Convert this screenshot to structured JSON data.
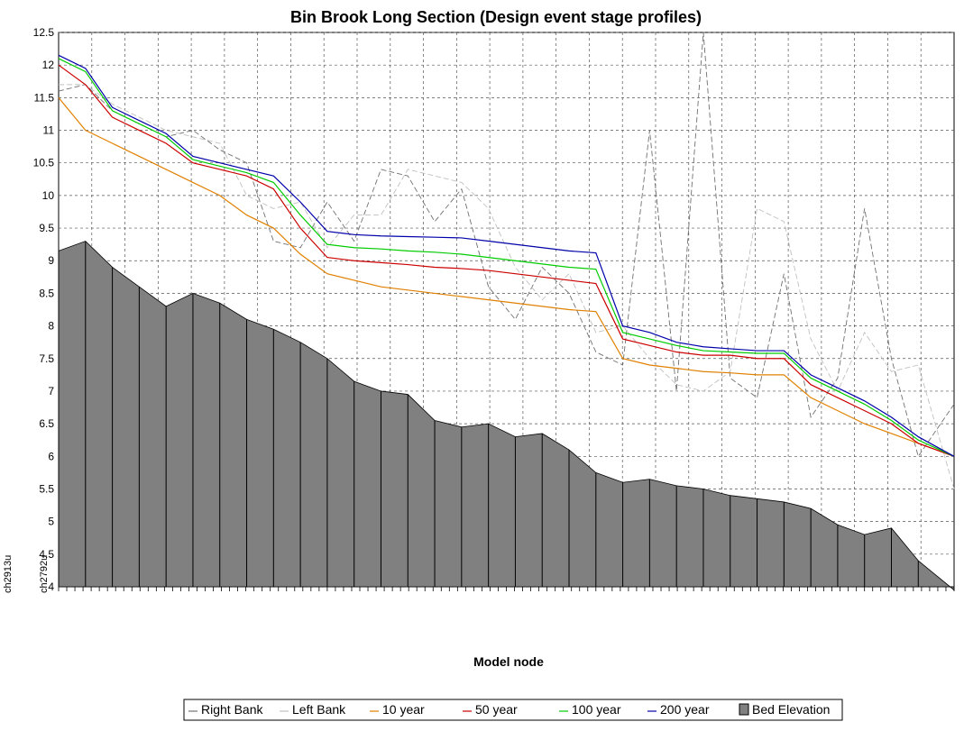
{
  "chart_data": {
    "type": "line",
    "title": "Bin Brook Long Section (Design event stage profiles)",
    "xlabel": "Model node",
    "ylabel": "",
    "ylim": [
      4,
      12.5
    ],
    "yticks": [
      4,
      4.5,
      5,
      5.5,
      6,
      6.5,
      7,
      7.5,
      8,
      8.5,
      9,
      9.5,
      10,
      10.5,
      11,
      11.5,
      12,
      12.5
    ],
    "grid": true,
    "legend_position": "bottom",
    "side_labels": [
      "ch2913u",
      "ch2792u"
    ],
    "colors": {
      "right_bank": "#707070",
      "left_bank": "#c0c0c0",
      "y10": "#e08000",
      "y50": "#cc0000",
      "y100": "#00cc00",
      "y200": "#0000aa",
      "bed": "#808080"
    },
    "x": [
      0,
      3,
      6,
      9,
      12,
      15,
      18,
      21,
      24,
      27,
      30,
      33,
      36,
      39,
      42,
      45,
      48,
      51,
      54,
      57,
      60,
      63,
      66,
      69,
      72,
      75,
      78,
      81,
      84,
      87,
      90,
      93,
      96,
      100
    ],
    "series": [
      {
        "name": "Right Bank",
        "values": [
          11.6,
          11.7,
          11.3,
          11.1,
          10.9,
          11.0,
          10.7,
          10.5,
          9.3,
          9.2,
          9.9,
          9.3,
          10.4,
          10.3,
          9.6,
          10.1,
          8.6,
          8.1,
          8.9,
          8.5,
          7.6,
          7.4,
          11.0,
          7.0,
          12.5,
          7.2,
          6.9,
          8.8,
          6.6,
          7.2,
          9.8,
          7.5,
          6.0,
          6.8
        ]
      },
      {
        "name": "Left Bank",
        "values": [
          11.7,
          11.7,
          11.4,
          11.2,
          11.0,
          10.9,
          10.8,
          10.0,
          9.8,
          9.9,
          9.2,
          9.7,
          9.7,
          10.4,
          10.3,
          10.2,
          9.8,
          8.9,
          8.4,
          8.8,
          7.9,
          8.0,
          7.5,
          7.1,
          7.0,
          7.3,
          9.8,
          9.6,
          7.8,
          7.0,
          7.9,
          7.3,
          7.4,
          5.5
        ]
      },
      {
        "name": "10 year",
        "values": [
          11.5,
          11.0,
          10.8,
          10.6,
          10.4,
          10.2,
          10.0,
          9.7,
          9.5,
          9.1,
          8.8,
          8.7,
          8.6,
          8.55,
          8.5,
          8.45,
          8.4,
          8.35,
          8.3,
          8.25,
          8.22,
          7.5,
          7.4,
          7.35,
          7.3,
          7.28,
          7.25,
          7.25,
          6.9,
          6.7,
          6.5,
          6.35,
          6.2,
          6.0
        ]
      },
      {
        "name": "50 year",
        "values": [
          12.0,
          11.7,
          11.2,
          11.0,
          10.8,
          10.5,
          10.4,
          10.3,
          10.1,
          9.5,
          9.05,
          9.0,
          8.97,
          8.94,
          8.9,
          8.88,
          8.85,
          8.8,
          8.75,
          8.7,
          8.65,
          7.8,
          7.7,
          7.6,
          7.55,
          7.55,
          7.5,
          7.5,
          7.1,
          6.9,
          6.7,
          6.5,
          6.2,
          6.0
        ]
      },
      {
        "name": "100 year",
        "values": [
          12.1,
          11.9,
          11.3,
          11.1,
          10.9,
          10.55,
          10.45,
          10.35,
          10.2,
          9.7,
          9.25,
          9.2,
          9.18,
          9.15,
          9.13,
          9.1,
          9.05,
          9.0,
          8.95,
          8.9,
          8.87,
          7.9,
          7.8,
          7.7,
          7.62,
          7.6,
          7.58,
          7.58,
          7.2,
          7.0,
          6.8,
          6.55,
          6.25,
          6.0
        ]
      },
      {
        "name": "200 year",
        "values": [
          12.15,
          11.95,
          11.35,
          11.15,
          10.95,
          10.6,
          10.5,
          10.4,
          10.3,
          9.9,
          9.45,
          9.4,
          9.38,
          9.37,
          9.36,
          9.35,
          9.3,
          9.25,
          9.2,
          9.15,
          9.12,
          8.0,
          7.9,
          7.75,
          7.68,
          7.65,
          7.62,
          7.62,
          7.25,
          7.05,
          6.85,
          6.6,
          6.3,
          6.0
        ]
      },
      {
        "name": "Bed Elevation",
        "values": [
          9.15,
          9.3,
          8.9,
          8.6,
          8.3,
          8.5,
          8.35,
          8.1,
          7.95,
          7.75,
          7.5,
          7.15,
          7.0,
          6.95,
          6.55,
          6.45,
          6.5,
          6.3,
          6.35,
          6.1,
          5.75,
          5.6,
          5.65,
          5.55,
          5.5,
          5.4,
          5.35,
          5.3,
          5.2,
          4.95,
          4.8,
          4.9,
          4.4,
          3.95
        ]
      }
    ]
  }
}
